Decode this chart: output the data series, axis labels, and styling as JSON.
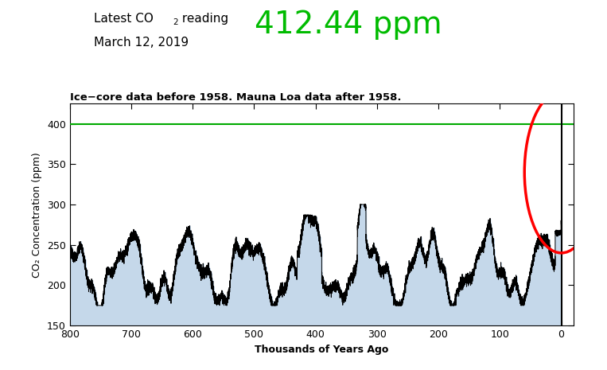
{
  "title_line1": "Latest CO",
  "title_sub": "2",
  "title_line2": " reading",
  "title_date": "March 12, 2019",
  "value_text": "412.44 ppm",
  "subtitle": "Ice−core data before 1958. Mauna Loa data after 1958.",
  "ylabel": "CO₂ Concentration (ppm)",
  "xlabel": "Thousands of Years Ago",
  "ylim": [
    150,
    425
  ],
  "xlim": [
    800,
    -20
  ],
  "yticks": [
    150,
    200,
    250,
    300,
    350,
    400
  ],
  "xticks": [
    800,
    700,
    600,
    500,
    400,
    300,
    200,
    100,
    0
  ],
  "green_line_y": 400,
  "current_co2": 412.44,
  "vertical_line_x": 0,
  "fill_color": "#c5d8ea",
  "line_color": "black",
  "green_color": "#00aa00",
  "red_ellipse_color": "red",
  "value_color": "#00bb00",
  "title_color": "black",
  "subtitle_fontsize": 9.5,
  "title_fontsize": 11,
  "value_fontsize": 28,
  "background_color": "white"
}
